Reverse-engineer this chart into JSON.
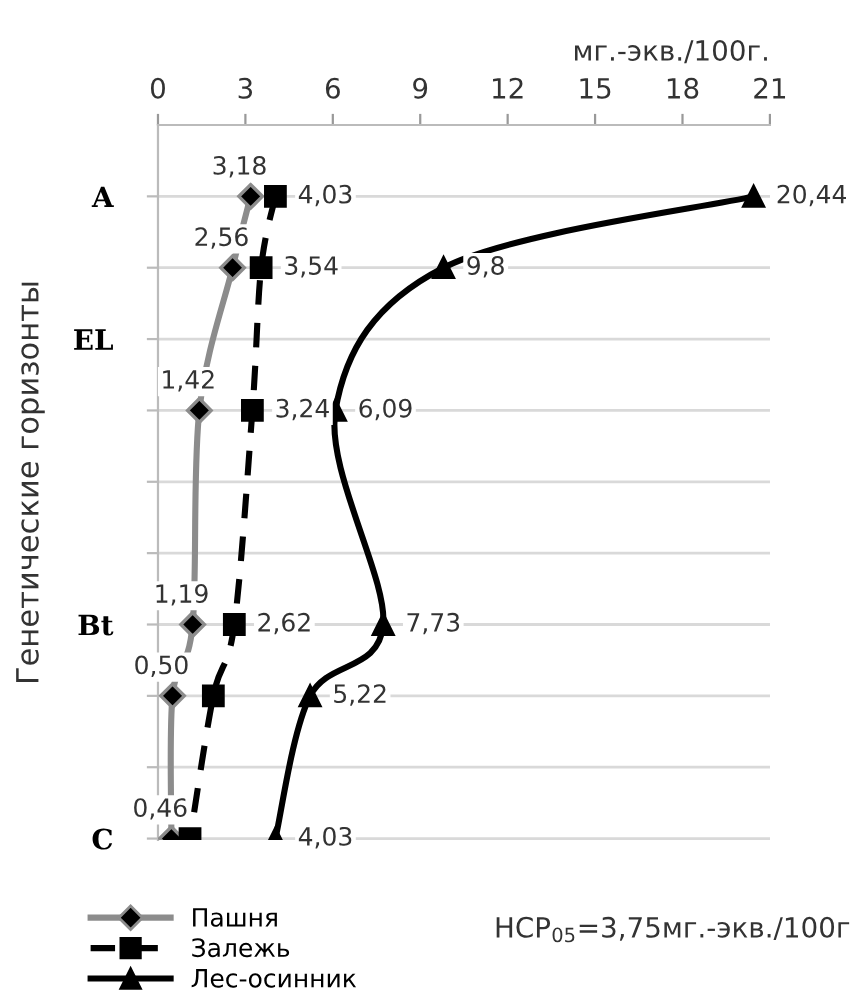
{
  "chart_data": {
    "type": "line",
    "orientation": "horizontal",
    "xlabel": "мг.-экв./100г.",
    "ylabel": "Генетические горизонты",
    "categories": [
      "A",
      null,
      "EL",
      null,
      null,
      null,
      "Bt",
      null,
      null,
      "C"
    ],
    "xlim": [
      0,
      21
    ],
    "xticks": [
      0,
      3,
      6,
      9,
      12,
      15,
      18,
      21
    ],
    "grid": "y",
    "legend": "bottom left",
    "series": [
      {
        "name": "Пашня",
        "color": "#8c8c8c",
        "marker": "diamond",
        "line_style": "solid",
        "values": [
          3.18,
          2.56,
          null,
          1.42,
          null,
          null,
          1.19,
          0.5,
          null,
          0.46
        ],
        "value_labels": [
          "3,18",
          "2,56",
          null,
          "1,42",
          null,
          null,
          "1,19",
          "0,50",
          null,
          "0,46"
        ]
      },
      {
        "name": "Залежь",
        "color": "#000000",
        "marker": "square",
        "line_style": "dashed",
        "values": [
          4.03,
          3.54,
          null,
          3.24,
          null,
          null,
          2.62,
          1.9,
          null,
          1.1
        ],
        "value_labels": [
          "4,03",
          "3,54",
          null,
          "3,24",
          null,
          null,
          "2,62",
          null,
          null,
          null
        ]
      },
      {
        "name": "Лес-осинник",
        "color": "#000000",
        "marker": "triangle",
        "line_style": "solid",
        "values": [
          20.44,
          9.8,
          null,
          6.09,
          null,
          null,
          7.73,
          5.22,
          null,
          4.03
        ],
        "value_labels": [
          "20,44",
          "9,8",
          null,
          "6,09",
          null,
          null,
          "7,73",
          "5,22",
          null,
          "4,03"
        ]
      }
    ],
    "annotations": [
      "НСР$_{05}$=3,75мг.-экв./100г"
    ]
  }
}
